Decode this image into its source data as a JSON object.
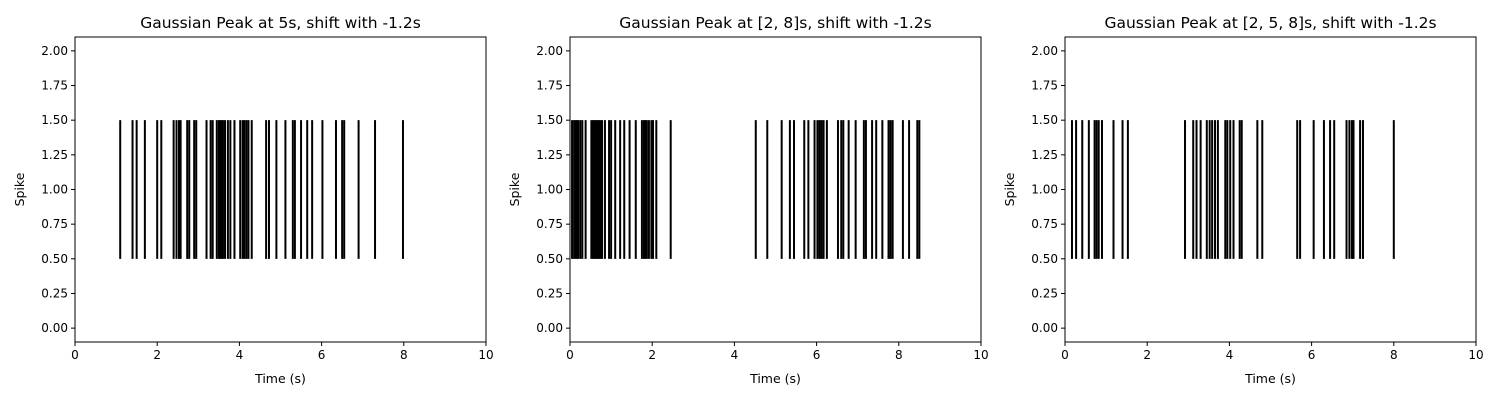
{
  "chart_data": [
    {
      "type": "eventplot",
      "title": "Gaussian Peak at 5s, shift with -1.2s",
      "xlabel": "Time (s)",
      "ylabel": "Spike",
      "xlim": [
        0,
        10
      ],
      "ylim": [
        -0.1,
        2.1
      ],
      "xticks": [
        0,
        2,
        4,
        6,
        8,
        10
      ],
      "xtick_labels": [
        "0",
        "2",
        "4",
        "6",
        "8",
        "10"
      ],
      "yticks": [
        0,
        0.25,
        0.5,
        0.75,
        1.0,
        1.25,
        1.5,
        1.75,
        2.0
      ],
      "ytick_labels": [
        "0.00",
        "0.25",
        "0.50",
        "0.75",
        "1.00",
        "1.25",
        "1.50",
        "1.75",
        "2.00"
      ],
      "line_y_range": [
        0.5,
        1.5
      ],
      "line_color": "#000000",
      "events": [
        1.1,
        1.4,
        1.5,
        1.7,
        2.0,
        2.1,
        2.4,
        2.47,
        2.53,
        2.57,
        2.73,
        2.78,
        2.9,
        2.95,
        3.2,
        3.3,
        3.35,
        3.45,
        3.5,
        3.53,
        3.57,
        3.6,
        3.65,
        3.72,
        3.78,
        3.88,
        4.02,
        4.08,
        4.12,
        4.17,
        4.22,
        4.3,
        4.65,
        4.72,
        4.9,
        5.12,
        5.3,
        5.35,
        5.5,
        5.65,
        5.77,
        6.02,
        6.35,
        6.5,
        6.55,
        6.9,
        7.3,
        7.98
      ]
    },
    {
      "type": "eventplot",
      "title": "Gaussian Peak at [2, 8]s, shift with -1.2s",
      "xlabel": "Time (s)",
      "ylabel": "Spike",
      "xlim": [
        0,
        10
      ],
      "ylim": [
        -0.1,
        2.1
      ],
      "xticks": [
        0,
        2,
        4,
        6,
        8,
        10
      ],
      "xtick_labels": [
        "0",
        "2",
        "4",
        "6",
        "8",
        "10"
      ],
      "yticks": [
        0,
        0.25,
        0.5,
        0.75,
        1.0,
        1.25,
        1.5,
        1.75,
        2.0
      ],
      "ytick_labels": [
        "0.00",
        "0.25",
        "0.50",
        "0.75",
        "1.00",
        "1.25",
        "1.50",
        "1.75",
        "2.00"
      ],
      "line_y_range": [
        0.5,
        1.5
      ],
      "line_color": "#000000",
      "events": [
        0.05,
        0.1,
        0.13,
        0.17,
        0.2,
        0.25,
        0.3,
        0.38,
        0.52,
        0.56,
        0.6,
        0.63,
        0.67,
        0.7,
        0.74,
        0.78,
        0.85,
        0.95,
        1.0,
        1.1,
        1.22,
        1.32,
        1.45,
        1.6,
        1.75,
        1.8,
        1.83,
        1.87,
        1.92,
        1.98,
        2.02,
        2.1,
        2.45,
        4.52,
        4.8,
        5.15,
        5.35,
        5.45,
        5.7,
        5.8,
        5.95,
        6.02,
        6.07,
        6.12,
        6.17,
        6.25,
        6.52,
        6.6,
        6.65,
        6.78,
        6.95,
        7.15,
        7.2,
        7.35,
        7.45,
        7.6,
        7.75,
        7.8,
        7.85,
        8.1,
        8.25,
        8.45,
        8.5
      ]
    },
    {
      "type": "eventplot",
      "title": "Gaussian Peak at [2, 5, 8]s, shift with -1.2s",
      "xlabel": "Time (s)",
      "ylabel": "Spike",
      "xlim": [
        0,
        10
      ],
      "ylim": [
        -0.1,
        2.1
      ],
      "xticks": [
        0,
        2,
        4,
        6,
        8,
        10
      ],
      "xtick_labels": [
        "0",
        "2",
        "4",
        "6",
        "8",
        "10"
      ],
      "yticks": [
        0,
        0.25,
        0.5,
        0.75,
        1.0,
        1.25,
        1.5,
        1.75,
        2.0
      ],
      "ytick_labels": [
        "0.00",
        "0.25",
        "0.50",
        "0.75",
        "1.00",
        "1.25",
        "1.50",
        "1.75",
        "2.00"
      ],
      "line_y_range": [
        0.5,
        1.5
      ],
      "line_color": "#000000",
      "events": [
        0.17,
        0.27,
        0.42,
        0.58,
        0.72,
        0.77,
        0.82,
        0.9,
        1.18,
        1.4,
        1.53,
        2.92,
        3.12,
        3.2,
        3.3,
        3.45,
        3.52,
        3.58,
        3.65,
        3.72,
        3.9,
        3.95,
        4.02,
        4.1,
        4.25,
        4.3,
        4.68,
        4.8,
        5.65,
        5.72,
        6.05,
        6.3,
        6.45,
        6.55,
        6.85,
        6.92,
        6.98,
        7.02,
        7.18,
        7.25,
        8.0
      ]
    }
  ]
}
